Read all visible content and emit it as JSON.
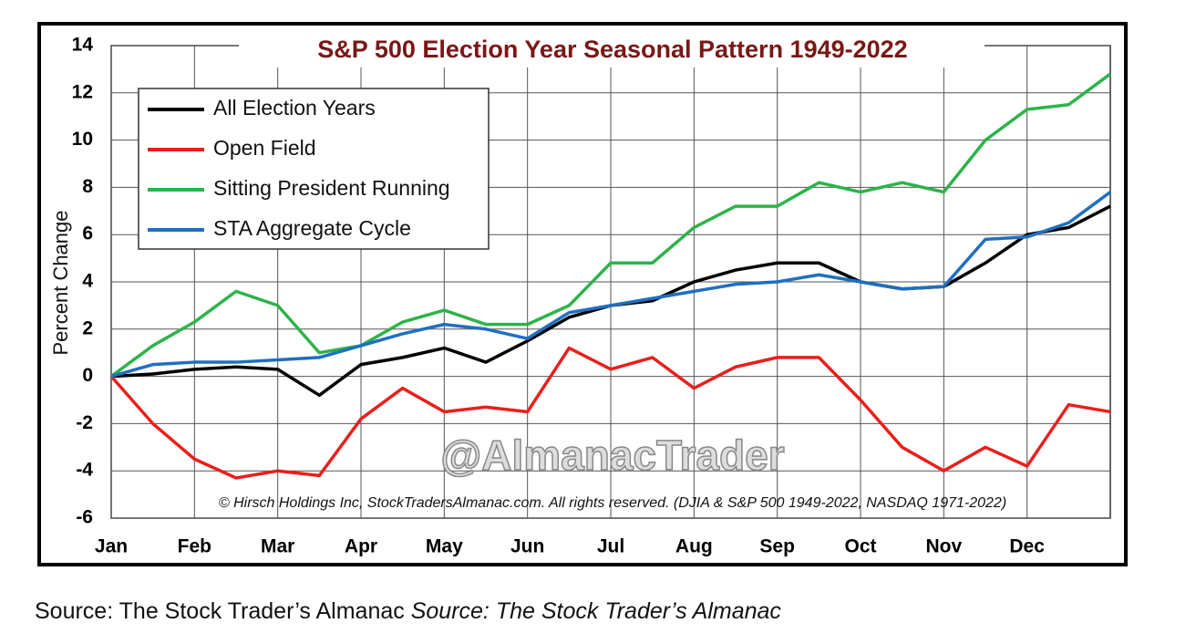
{
  "chart_data": {
    "type": "line",
    "title": "S&P 500 Election Year Seasonal Pattern 1949-2022",
    "y_label": "Percent Change",
    "watermark": "@AlmanacTrader",
    "note": "© Hirsch Holdings Inc, StockTradersAlmanac.com. All rights reserved. (DJIA & S&P 500 1949-2022, NASDAQ 1971-2022)",
    "x": [
      0,
      0.5,
      1,
      1.5,
      2,
      2.5,
      3,
      3.5,
      4,
      4.5,
      5,
      5.5,
      6,
      6.5,
      7,
      7.5,
      8,
      8.5,
      9,
      9.5,
      10,
      10.5,
      11,
      11.5,
      12
    ],
    "xlim": [
      0,
      12
    ],
    "xticks": [
      {
        "value": 0,
        "label": "Jan"
      },
      {
        "value": 1,
        "label": "Feb"
      },
      {
        "value": 2,
        "label": "Mar"
      },
      {
        "value": 3,
        "label": "Apr"
      },
      {
        "value": 4,
        "label": "May"
      },
      {
        "value": 5,
        "label": "Jun"
      },
      {
        "value": 6,
        "label": "Jul"
      },
      {
        "value": 7,
        "label": "Aug"
      },
      {
        "value": 8,
        "label": "Sep"
      },
      {
        "value": 9,
        "label": "Oct"
      },
      {
        "value": 10,
        "label": "Nov"
      },
      {
        "value": 11,
        "label": "Dec"
      }
    ],
    "ylim": [
      -6,
      14
    ],
    "yticks": [
      -6,
      -4,
      -2,
      0,
      2,
      4,
      6,
      8,
      10,
      12,
      14
    ],
    "grid": true,
    "legend": "upper left",
    "series": [
      {
        "name": "All Election Years",
        "color": "#000000",
        "values": [
          0,
          0.1,
          0.3,
          0.4,
          0.3,
          -0.8,
          0.5,
          0.8,
          1.2,
          0.6,
          1.5,
          2.5,
          3.0,
          3.2,
          4.0,
          4.5,
          4.8,
          4.8,
          4.0,
          3.7,
          3.8,
          4.8,
          6.0,
          6.3,
          7.2
        ]
      },
      {
        "name": "Open Field",
        "color": "#e8201c",
        "values": [
          0,
          -2.0,
          -3.5,
          -4.3,
          -4.0,
          -4.2,
          -1.8,
          -0.5,
          -1.5,
          -1.3,
          -1.5,
          1.2,
          0.3,
          0.8,
          -0.5,
          0.4,
          0.8,
          0.8,
          -1.0,
          -3.0,
          -4.0,
          -3.0,
          -3.8,
          -1.2,
          -1.5
        ]
      },
      {
        "name": "Sitting President Running",
        "color": "#2db34a",
        "values": [
          0,
          1.3,
          2.3,
          3.6,
          3.0,
          1.0,
          1.3,
          2.3,
          2.8,
          2.2,
          2.2,
          3.0,
          4.8,
          4.8,
          6.3,
          7.2,
          7.2,
          8.2,
          7.8,
          8.2,
          7.8,
          10.0,
          11.3,
          11.5,
          12.8
        ]
      },
      {
        "name": "STA Aggregate Cycle",
        "color": "#1f6fc0",
        "values": [
          0,
          0.5,
          0.6,
          0.6,
          0.7,
          0.8,
          1.3,
          1.8,
          2.2,
          2.0,
          1.6,
          2.7,
          3.0,
          3.3,
          3.6,
          3.9,
          4.0,
          4.3,
          4.0,
          3.7,
          3.8,
          5.8,
          5.9,
          6.5,
          7.8
        ]
      }
    ]
  },
  "caption": {
    "plain": "Source: The Stock Trader’s Almanac",
    "italic": "Source: The Stock Trader’s Almanac"
  }
}
